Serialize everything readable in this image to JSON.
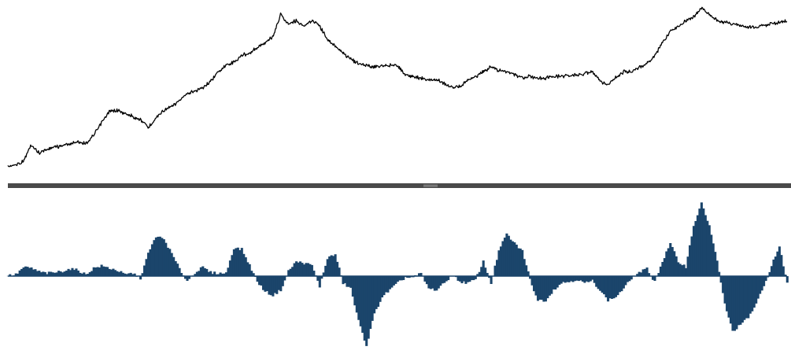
{
  "colors": {
    "background": "#ffffff",
    "price_line": "#000000",
    "histogram": "#1b456b",
    "divider": "#4a4a4a",
    "divider_grip": "#9a9a9a"
  },
  "chart_data": [
    {
      "type": "line",
      "panel": "price",
      "title": "",
      "xlabel": "",
      "ylabel": "",
      "axes_visible": false,
      "grid": false,
      "ylim": [
        0,
        100
      ],
      "x": [
        0,
        10,
        20,
        30,
        40,
        50,
        60,
        70,
        80,
        90,
        100,
        110,
        120,
        130,
        140,
        150,
        160,
        170,
        180,
        190,
        200,
        210,
        220,
        230,
        240,
        250,
        260,
        270,
        280,
        290,
        300,
        310,
        320,
        330,
        340,
        350,
        360,
        370,
        380,
        390,
        400,
        410,
        420,
        430,
        440,
        450,
        460,
        470,
        480,
        490,
        500,
        510,
        520,
        530,
        540,
        550,
        560,
        570,
        580,
        590,
        600,
        610,
        620,
        630,
        640,
        650,
        660,
        670,
        680,
        690,
        700,
        710,
        720,
        730,
        740,
        750,
        760,
        770,
        780,
        790,
        800,
        810,
        820,
        830,
        840,
        850,
        860,
        870,
        880,
        890,
        900,
        910,
        920,
        930,
        940,
        950,
        960,
        970,
        980,
        990,
        1000
      ],
      "series": [
        {
          "values": [
            0.5,
            1.5,
            4,
            14,
            9,
            11.5,
            13,
            13.5,
            15,
            16,
            15,
            20,
            28,
            35,
            36,
            34,
            32,
            30,
            25,
            31,
            36,
            38,
            42,
            46,
            48,
            50,
            54,
            60,
            64,
            66,
            70,
            72,
            75,
            78,
            82,
            96,
            90,
            92,
            88,
            92,
            89,
            80,
            76,
            72,
            68,
            65,
            64,
            63,
            64,
            64,
            64,
            58,
            57,
            56,
            55,
            55,
            53,
            50,
            51,
            55,
            57,
            60,
            63,
            61,
            60,
            58,
            56,
            57,
            56,
            56,
            57,
            57,
            58,
            58,
            59,
            60,
            54,
            52,
            56,
            60,
            60,
            63,
            65,
            70,
            78,
            85,
            88,
            92,
            94,
            100,
            96,
            92,
            91,
            90,
            89,
            88,
            88,
            89,
            90,
            91,
            92
          ]
        }
      ]
    },
    {
      "type": "bar",
      "panel": "oscillator",
      "title": "",
      "xlabel": "",
      "ylabel": "",
      "axes_visible": false,
      "grid": false,
      "baseline": 0,
      "ylim": [
        -100,
        100
      ],
      "x": [
        0,
        10,
        20,
        30,
        40,
        50,
        60,
        70,
        80,
        90,
        100,
        110,
        120,
        130,
        140,
        150,
        160,
        170,
        180,
        190,
        200,
        210,
        220,
        230,
        240,
        250,
        260,
        270,
        280,
        290,
        300,
        310,
        320,
        330,
        340,
        350,
        360,
        370,
        380,
        390,
        400,
        410,
        420,
        430,
        440,
        450,
        460,
        470,
        480,
        490,
        500,
        510,
        520,
        530,
        540,
        550,
        560,
        570,
        580,
        590,
        600,
        610,
        620,
        630,
        640,
        650,
        660,
        670,
        680,
        690,
        700,
        710,
        720,
        730,
        740,
        750,
        760,
        770,
        780,
        790,
        800,
        810,
        820,
        830,
        840,
        850,
        860,
        870,
        880,
        890,
        900,
        910,
        920,
        930,
        940,
        950,
        960,
        970,
        980,
        990,
        1000
      ],
      "series": [
        {
          "values": [
            1,
            2,
            12,
            11,
            6,
            4,
            5,
            7,
            10,
            8,
            2,
            11,
            14,
            11,
            8,
            2,
            4,
            -3,
            31,
            55,
            51,
            31,
            10,
            -7,
            5,
            12,
            5,
            4,
            4,
            39,
            37,
            15,
            -8,
            -22,
            -28,
            -20,
            7,
            20,
            18,
            15,
            -15,
            25,
            30,
            -10,
            -18,
            -65,
            -100,
            -55,
            -30,
            -20,
            -10,
            -2,
            -2,
            4,
            -18,
            -20,
            -10,
            2,
            -8,
            -10,
            -5,
            20,
            -10,
            35,
            58,
            45,
            35,
            -5,
            -35,
            -35,
            -20,
            -10,
            -8,
            -5,
            -10,
            -7,
            -20,
            -35,
            -30,
            -18,
            -3,
            5,
            10,
            -8,
            20,
            45,
            20,
            13,
            70,
            100,
            70,
            20,
            -40,
            -80,
            -70,
            -60,
            -40,
            -15,
            15,
            40,
            -10
          ]
        }
      ]
    }
  ]
}
